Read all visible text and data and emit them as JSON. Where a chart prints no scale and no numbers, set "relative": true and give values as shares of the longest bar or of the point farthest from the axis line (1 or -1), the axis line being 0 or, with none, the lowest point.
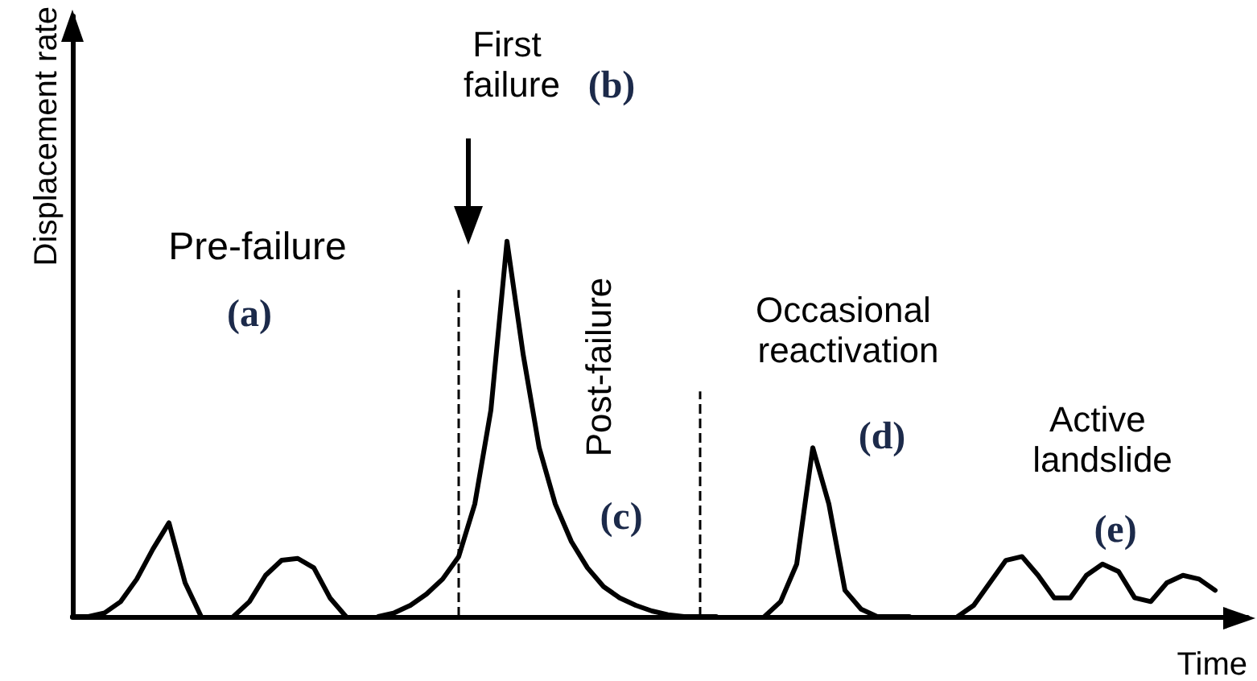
{
  "chart_data": {
    "type": "line",
    "relative": true,
    "xlabel": "Time",
    "ylabel": "Displacement rate",
    "line_style": "solid",
    "marker": "none",
    "categories": [
      null,
      null,
      null,
      null,
      null,
      null,
      null,
      null,
      null,
      null,
      null,
      null,
      null,
      null,
      null,
      null,
      null,
      null,
      null,
      null,
      null,
      null,
      null,
      null,
      null,
      null,
      null,
      null,
      null,
      null,
      null,
      null,
      null,
      null,
      null,
      null,
      null,
      null,
      null,
      null,
      null,
      null,
      null,
      null,
      null,
      null,
      null,
      null,
      null,
      null,
      null,
      null,
      null,
      null,
      null,
      null,
      null,
      null,
      null,
      null,
      null,
      null,
      null,
      null,
      null,
      null,
      null,
      null,
      null,
      null,
      null,
      null,
      null,
      null
    ],
    "series": [
      {
        "color": "#000000",
        "values": [
          0,
          0,
          0.01,
          0.04,
          0.1,
          0.18,
          0.25,
          0.09,
          0,
          null,
          null,
          null,
          null,
          null,
          null,
          null,
          null,
          null,
          null,
          null,
          null,
          null,
          null,
          null,
          null,
          null,
          null,
          null,
          null,
          null,
          null,
          null,
          null,
          null,
          null,
          null,
          null,
          null,
          null,
          null,
          null,
          null,
          null,
          null,
          null,
          null,
          null,
          null,
          null,
          null,
          null,
          null,
          null,
          null,
          null,
          null,
          null,
          null,
          null,
          null,
          null,
          null,
          null,
          null,
          null,
          null,
          null,
          null,
          null,
          null,
          null,
          null,
          null,
          null
        ]
      },
      {
        "color": "#000000",
        "values": [
          null,
          null,
          null,
          null,
          null,
          null,
          null,
          null,
          null,
          null,
          0,
          0.04,
          0.11,
          0.15,
          0.155,
          0.13,
          0.05,
          0,
          null,
          null,
          null,
          null,
          null,
          null,
          null,
          null,
          null,
          null,
          null,
          null,
          null,
          null,
          null,
          null,
          null,
          null,
          null,
          null,
          null,
          null,
          null,
          null,
          null,
          null,
          null,
          null,
          null,
          null,
          null,
          null,
          null,
          null,
          null,
          null,
          null,
          null,
          null,
          null,
          null,
          null,
          null,
          null,
          null,
          null,
          null,
          null,
          null,
          null,
          null,
          null,
          null,
          null,
          null,
          null
        ]
      },
      {
        "color": "#000000",
        "values": [
          null,
          null,
          null,
          null,
          null,
          null,
          null,
          null,
          null,
          null,
          null,
          null,
          null,
          null,
          null,
          null,
          null,
          null,
          null,
          0,
          0.01,
          0.03,
          0.06,
          0.1,
          0.16,
          0.3,
          0.55,
          1,
          0.7,
          0.45,
          0.3,
          0.2,
          0.13,
          0.08,
          0.05,
          0.03,
          0.015,
          0.005,
          0,
          0,
          0,
          null,
          null,
          null,
          null,
          null,
          null,
          null,
          null,
          null,
          null,
          null,
          null,
          null,
          null,
          null,
          null,
          null,
          null,
          null,
          null,
          null,
          null,
          null,
          null,
          null,
          null,
          null,
          null,
          null,
          null,
          null,
          null,
          null
        ]
      },
      {
        "color": "#000000",
        "values": [
          null,
          null,
          null,
          null,
          null,
          null,
          null,
          null,
          null,
          null,
          null,
          null,
          null,
          null,
          null,
          null,
          null,
          null,
          null,
          null,
          null,
          null,
          null,
          null,
          null,
          null,
          null,
          null,
          null,
          null,
          null,
          null,
          null,
          null,
          null,
          null,
          null,
          null,
          null,
          null,
          null,
          null,
          null,
          0,
          0.04,
          0.14,
          0.45,
          0.3,
          0.07,
          0.02,
          0,
          0,
          0,
          null,
          null,
          null,
          null,
          null,
          null,
          null,
          null,
          null,
          null,
          null,
          null,
          null,
          null,
          null,
          null,
          null,
          null,
          null,
          null,
          null
        ]
      },
      {
        "color": "#000000",
        "values": [
          null,
          null,
          null,
          null,
          null,
          null,
          null,
          null,
          null,
          null,
          null,
          null,
          null,
          null,
          null,
          null,
          null,
          null,
          null,
          null,
          null,
          null,
          null,
          null,
          null,
          null,
          null,
          null,
          null,
          null,
          null,
          null,
          null,
          null,
          null,
          null,
          null,
          null,
          null,
          null,
          null,
          null,
          null,
          null,
          null,
          null,
          null,
          null,
          null,
          null,
          null,
          null,
          null,
          null,
          null,
          0,
          0.03,
          0.09,
          0.15,
          0.16,
          0.11,
          0.05,
          0.05,
          0.11,
          0.14,
          0.12,
          0.05,
          0.04,
          0.09,
          0.11,
          0.1,
          0.07,
          null,
          null
        ]
      }
    ],
    "ref_lines": [
      {
        "axis": "x",
        "line_style": "dashed"
      },
      {
        "axis": "x",
        "line_style": "dashed"
      }
    ],
    "annotations": [
      "Pre-failure",
      "(a)",
      "First failure",
      "(b)",
      "Post-failure",
      "(c)",
      "Occasional reactivation",
      "(d)",
      "Active landslide",
      "(e)"
    ]
  }
}
